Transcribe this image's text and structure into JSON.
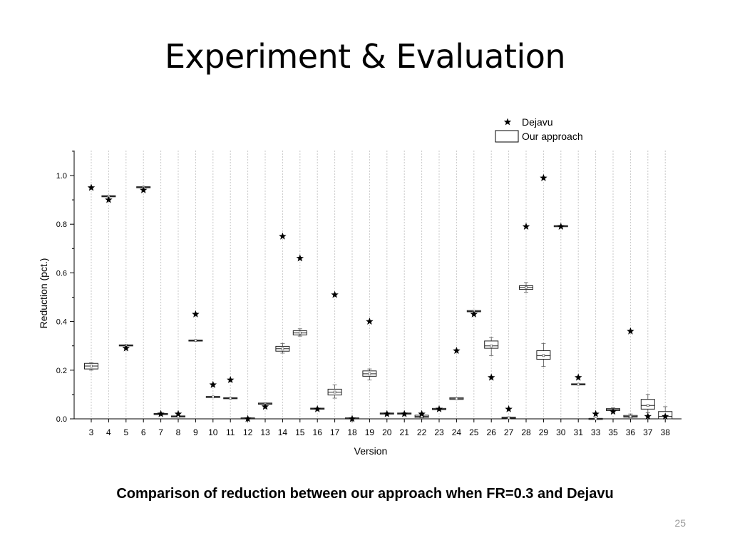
{
  "slide": {
    "title": "Experiment & Evaluation",
    "caption": "Comparison of reduction between our approach when FR=0.3 and Dejavu",
    "page_number": "25"
  },
  "chart_data": {
    "type": "boxplot-scatter",
    "xlabel": "Version",
    "ylabel": "Reduction (pct.)",
    "ylim": [
      0,
      1.1
    ],
    "yticks": [
      0.0,
      0.2,
      0.4,
      0.6,
      0.8,
      1.0
    ],
    "ytick_labels": [
      "0.0",
      "0.2",
      "0.4",
      "0.6",
      "0.8",
      "1.0"
    ],
    "categories": [
      "3",
      "4",
      "5",
      "6",
      "7",
      "8",
      "9",
      "10",
      "11",
      "12",
      "13",
      "14",
      "15",
      "16",
      "17",
      "18",
      "19",
      "20",
      "21",
      "22",
      "23",
      "24",
      "25",
      "26",
      "27",
      "28",
      "29",
      "30",
      "31",
      "33",
      "35",
      "36",
      "37",
      "38"
    ],
    "grid": "vertical dotted",
    "legend": {
      "placement": "top-right",
      "entries": [
        {
          "label": "Dejavu",
          "marker": "star"
        },
        {
          "label": "Our approach",
          "marker": "box"
        }
      ]
    },
    "series": [
      {
        "name": "Dejavu",
        "values": [
          0.95,
          0.9,
          0.29,
          0.94,
          0.02,
          0.02,
          0.43,
          0.14,
          0.16,
          0.0,
          0.05,
          0.75,
          0.66,
          0.04,
          0.51,
          0.0,
          0.4,
          0.02,
          0.02,
          0.02,
          0.04,
          0.28,
          0.43,
          0.17,
          0.04,
          0.79,
          0.99,
          0.79,
          0.17,
          0.02,
          0.03,
          0.36,
          0.01,
          0.01
        ]
      },
      {
        "name": "Our approach",
        "boxes": [
          {
            "min": 0.2,
            "q1": 0.205,
            "median": 0.217,
            "q3": 0.228,
            "max": 0.23
          },
          {
            "min": 0.913,
            "q1": 0.913,
            "median": 0.915,
            "q3": 0.917,
            "max": 0.917
          },
          {
            "min": 0.3,
            "q1": 0.3,
            "median": 0.302,
            "q3": 0.304,
            "max": 0.304
          },
          {
            "min": 0.95,
            "q1": 0.95,
            "median": 0.952,
            "q3": 0.954,
            "max": 0.954
          },
          {
            "min": 0.018,
            "q1": 0.018,
            "median": 0.02,
            "q3": 0.022,
            "max": 0.022
          },
          {
            "min": 0.008,
            "q1": 0.008,
            "median": 0.01,
            "q3": 0.012,
            "max": 0.012
          },
          {
            "min": 0.32,
            "q1": 0.32,
            "median": 0.322,
            "q3": 0.324,
            "max": 0.324
          },
          {
            "min": 0.088,
            "q1": 0.088,
            "median": 0.09,
            "q3": 0.092,
            "max": 0.092
          },
          {
            "min": 0.083,
            "q1": 0.083,
            "median": 0.085,
            "q3": 0.087,
            "max": 0.087
          },
          {
            "min": 0.0,
            "q1": 0.0,
            "median": 0.002,
            "q3": 0.004,
            "max": 0.004
          },
          {
            "min": 0.06,
            "q1": 0.06,
            "median": 0.062,
            "q3": 0.065,
            "max": 0.065
          },
          {
            "min": 0.27,
            "q1": 0.278,
            "median": 0.288,
            "q3": 0.298,
            "max": 0.31
          },
          {
            "min": 0.34,
            "q1": 0.345,
            "median": 0.353,
            "q3": 0.362,
            "max": 0.37
          },
          {
            "min": 0.04,
            "q1": 0.04,
            "median": 0.042,
            "q3": 0.044,
            "max": 0.044
          },
          {
            "min": 0.085,
            "q1": 0.098,
            "median": 0.11,
            "q3": 0.122,
            "max": 0.14
          },
          {
            "min": 0.0,
            "q1": 0.0,
            "median": 0.002,
            "q3": 0.004,
            "max": 0.004
          },
          {
            "min": 0.16,
            "q1": 0.175,
            "median": 0.185,
            "q3": 0.197,
            "max": 0.205
          },
          {
            "min": 0.02,
            "q1": 0.02,
            "median": 0.022,
            "q3": 0.024,
            "max": 0.024
          },
          {
            "min": 0.02,
            "q1": 0.02,
            "median": 0.022,
            "q3": 0.024,
            "max": 0.024
          },
          {
            "min": 0.004,
            "q1": 0.006,
            "median": 0.01,
            "q3": 0.015,
            "max": 0.018
          },
          {
            "min": 0.038,
            "q1": 0.038,
            "median": 0.04,
            "q3": 0.043,
            "max": 0.043
          },
          {
            "min": 0.08,
            "q1": 0.08,
            "median": 0.083,
            "q3": 0.087,
            "max": 0.087
          },
          {
            "min": 0.44,
            "q1": 0.44,
            "median": 0.442,
            "q3": 0.445,
            "max": 0.445
          },
          {
            "min": 0.26,
            "q1": 0.29,
            "median": 0.3,
            "q3": 0.32,
            "max": 0.335
          },
          {
            "min": 0.0,
            "q1": 0.002,
            "median": 0.004,
            "q3": 0.007,
            "max": 0.008
          },
          {
            "min": 0.52,
            "q1": 0.532,
            "median": 0.54,
            "q3": 0.547,
            "max": 0.56
          },
          {
            "min": 0.215,
            "q1": 0.245,
            "median": 0.26,
            "q3": 0.28,
            "max": 0.31
          },
          {
            "min": 0.79,
            "q1": 0.79,
            "median": 0.792,
            "q3": 0.794,
            "max": 0.794
          },
          {
            "min": 0.14,
            "q1": 0.14,
            "median": 0.142,
            "q3": 0.144,
            "max": 0.144
          },
          {
            "min": 0.0,
            "q1": 0.0,
            "median": 0.0,
            "q3": 0.002,
            "max": 0.002
          },
          {
            "min": 0.03,
            "q1": 0.034,
            "median": 0.038,
            "q3": 0.042,
            "max": 0.045
          },
          {
            "min": 0.005,
            "q1": 0.007,
            "median": 0.01,
            "q3": 0.014,
            "max": 0.02
          },
          {
            "min": 0.025,
            "q1": 0.04,
            "median": 0.055,
            "q3": 0.08,
            "max": 0.1
          },
          {
            "min": 0.0,
            "q1": 0.0,
            "median": 0.01,
            "q3": 0.03,
            "max": 0.05
          }
        ]
      }
    ]
  }
}
